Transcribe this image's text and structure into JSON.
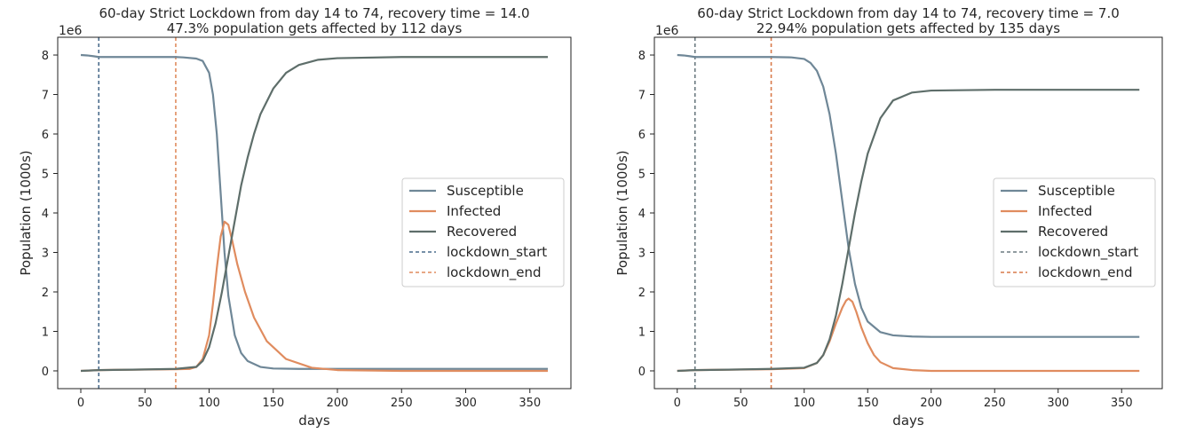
{
  "chart_data": [
    {
      "type": "line",
      "title_line1": "60-day Strict Lockdown from day 14 to 74, recovery time = 14.0",
      "title_line2": "47.3% population gets affected by 112 days",
      "xlabel": "days",
      "ylabel": "Population (1000s)",
      "y_offset_label": "1e6",
      "xlim": [
        -18,
        382
      ],
      "ylim": [
        -0.45,
        8.45
      ],
      "xticks": [
        0,
        50,
        100,
        150,
        200,
        250,
        300,
        350
      ],
      "yticks": [
        0,
        1,
        2,
        3,
        4,
        5,
        6,
        7,
        8
      ],
      "grid": false,
      "legend_position": "center-right",
      "lockdown_start": 14,
      "lockdown_end": 74,
      "series": [
        {
          "name": "Susceptible",
          "color": "#6f8797",
          "x": [
            0,
            5,
            10,
            14,
            20,
            40,
            60,
            74,
            80,
            90,
            95,
            100,
            103,
            106,
            109,
            112,
            115,
            120,
            125,
            130,
            140,
            150,
            170,
            200,
            250,
            300,
            364
          ],
          "y": [
            8.0,
            7.99,
            7.97,
            7.95,
            7.95,
            7.95,
            7.95,
            7.95,
            7.94,
            7.91,
            7.85,
            7.55,
            7.0,
            6.0,
            4.5,
            3.0,
            1.9,
            0.9,
            0.45,
            0.25,
            0.1,
            0.06,
            0.05,
            0.05,
            0.05,
            0.05,
            0.05
          ]
        },
        {
          "name": "Infected",
          "color": "#e08c5f",
          "x": [
            0,
            14,
            40,
            74,
            85,
            90,
            95,
            100,
            103,
            106,
            109,
            112,
            115,
            118,
            122,
            128,
            135,
            145,
            160,
            180,
            200,
            250,
            364
          ],
          "y": [
            0,
            0.02,
            0.03,
            0.04,
            0.05,
            0.1,
            0.3,
            0.9,
            1.7,
            2.6,
            3.4,
            3.78,
            3.7,
            3.3,
            2.7,
            2.0,
            1.35,
            0.75,
            0.3,
            0.08,
            0.02,
            0,
            0
          ]
        },
        {
          "name": "Recovered",
          "color": "#5e6e6a",
          "x": [
            0,
            14,
            40,
            74,
            90,
            95,
            100,
            105,
            110,
            115,
            120,
            125,
            130,
            135,
            140,
            150,
            160,
            170,
            185,
            200,
            250,
            364
          ],
          "y": [
            0,
            0.02,
            0.03,
            0.05,
            0.1,
            0.25,
            0.6,
            1.2,
            2.0,
            2.9,
            3.8,
            4.7,
            5.4,
            6.0,
            6.5,
            7.15,
            7.55,
            7.75,
            7.88,
            7.92,
            7.95,
            7.95
          ]
        }
      ],
      "vlines": [
        {
          "name": "lockdown_start",
          "color": "#4a6c8c",
          "x": 14
        },
        {
          "name": "lockdown_end",
          "color": "#e08c5f",
          "x": 74
        }
      ]
    },
    {
      "type": "line",
      "title_line1": "60-day Strict Lockdown from day 14 to 74, recovery time = 7.0",
      "title_line2": "22.94% population gets affected by 135 days",
      "xlabel": "days",
      "ylabel": "Population (1000s)",
      "y_offset_label": "1e6",
      "xlim": [
        -18,
        382
      ],
      "ylim": [
        -0.45,
        8.45
      ],
      "xticks": [
        0,
        50,
        100,
        150,
        200,
        250,
        300,
        350
      ],
      "yticks": [
        0,
        1,
        2,
        3,
        4,
        5,
        6,
        7,
        8
      ],
      "grid": false,
      "legend_position": "center-right",
      "lockdown_start": 14,
      "lockdown_end": 74,
      "series": [
        {
          "name": "Susceptible",
          "color": "#6f8797",
          "x": [
            0,
            5,
            10,
            14,
            20,
            40,
            74,
            90,
            100,
            105,
            110,
            115,
            120,
            125,
            130,
            135,
            140,
            145,
            150,
            160,
            170,
            185,
            200,
            250,
            364
          ],
          "y": [
            8.0,
            7.99,
            7.97,
            7.95,
            7.95,
            7.95,
            7.95,
            7.94,
            7.9,
            7.8,
            7.6,
            7.2,
            6.5,
            5.5,
            4.3,
            3.1,
            2.2,
            1.6,
            1.25,
            0.98,
            0.9,
            0.87,
            0.86,
            0.86,
            0.86
          ]
        },
        {
          "name": "Infected",
          "color": "#e08c5f",
          "x": [
            0,
            14,
            40,
            74,
            100,
            110,
            115,
            120,
            125,
            130,
            133,
            135,
            138,
            141,
            145,
            150,
            155,
            160,
            170,
            185,
            200,
            250,
            364
          ],
          "y": [
            0,
            0.02,
            0.03,
            0.04,
            0.07,
            0.2,
            0.4,
            0.75,
            1.2,
            1.6,
            1.78,
            1.83,
            1.75,
            1.5,
            1.1,
            0.7,
            0.4,
            0.22,
            0.07,
            0.02,
            0,
            0,
            0
          ]
        },
        {
          "name": "Recovered",
          "color": "#5e6e6a",
          "x": [
            0,
            14,
            40,
            74,
            100,
            110,
            115,
            120,
            125,
            130,
            135,
            140,
            145,
            150,
            160,
            170,
            185,
            200,
            250,
            364
          ],
          "y": [
            0,
            0.02,
            0.03,
            0.05,
            0.08,
            0.2,
            0.4,
            0.8,
            1.4,
            2.2,
            3.1,
            4.0,
            4.8,
            5.5,
            6.4,
            6.85,
            7.05,
            7.1,
            7.12,
            7.12
          ]
        }
      ],
      "vlines": [
        {
          "name": "lockdown_start",
          "color": "#6b7a80",
          "x": 14
        },
        {
          "name": "lockdown_end",
          "color": "#d97a4a",
          "x": 74
        }
      ]
    }
  ]
}
